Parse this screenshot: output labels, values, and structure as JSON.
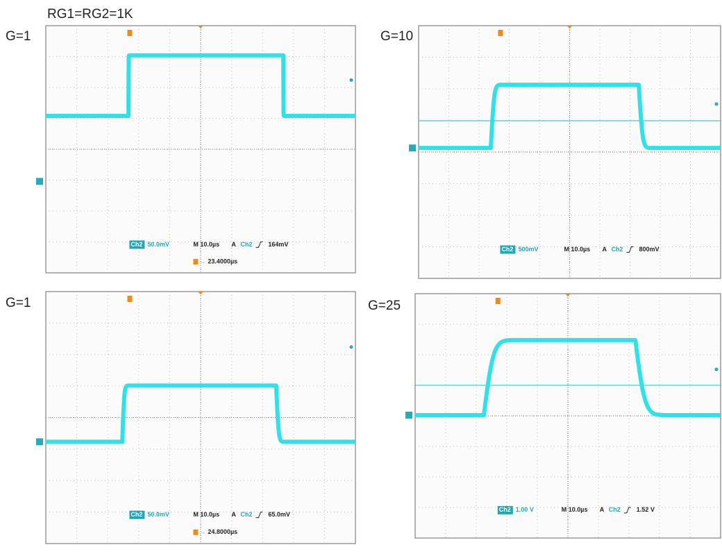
{
  "title": "RG1=RG2=1K",
  "panels": [
    {
      "label": "G=1",
      "readout": {
        "channel": "Ch2",
        "scale": "50.0mV",
        "timebase": "M 10.0µs",
        "trigger_mode": "A",
        "trigger_source": "Ch2",
        "trigger_level": "164mV",
        "cursor": "23.4000µs"
      }
    },
    {
      "label": "G=10",
      "readout": {
        "channel": "Ch2",
        "scale": "500mV",
        "timebase": "M 10.0µs",
        "trigger_mode": "A",
        "trigger_source": "Ch2",
        "trigger_level": "800mV"
      }
    },
    {
      "label": "G=1",
      "readout": {
        "channel": "Ch2",
        "scale": "50.0mV",
        "timebase": "M 10.0µs",
        "trigger_mode": "A",
        "trigger_source": "Ch2",
        "trigger_level": "65.0mV",
        "cursor": "24.8000µs"
      }
    },
    {
      "label": "G=25",
      "readout": {
        "channel": "Ch2",
        "scale": "1.00 V",
        "timebase": "M 10.0µs",
        "trigger_mode": "A",
        "trigger_source": "Ch2",
        "trigger_level": "1.52 V"
      }
    }
  ]
}
